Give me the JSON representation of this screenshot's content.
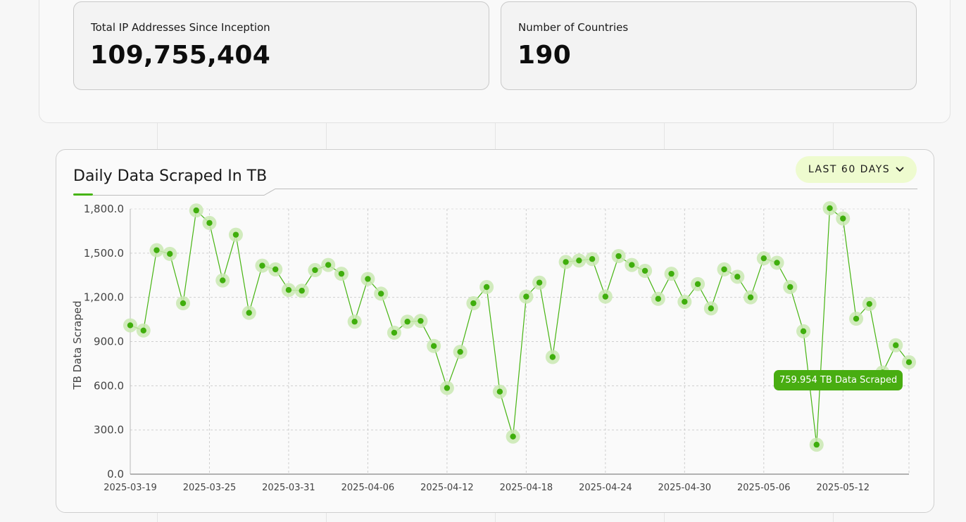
{
  "stats": [
    {
      "label": "Total IP Addresses Since Inception",
      "value": "109,755,404"
    },
    {
      "label": "Number of Countries",
      "value": "190"
    }
  ],
  "chart_panel": {
    "title": "Daily Data Scraped In TB",
    "range_label": "LAST 60 DAYS",
    "range_icon": "chevron-down-icon",
    "tooltip": "759.954 TB Data Scraped"
  },
  "colors": {
    "accent": "#46b411",
    "point": "#3fae0c",
    "halo": "#c9e8b2",
    "tooltip_bg": "#48ad11"
  },
  "chart_data": {
    "type": "line",
    "ylabel": "TB Data Scraped",
    "xlabel": "",
    "ylim": [
      0,
      1800
    ],
    "yticks": [
      "0.0",
      "300.0",
      "600.0",
      "900.0",
      "1,200.0",
      "1,500.0",
      "1,800.0"
    ],
    "xticks": [
      "2025-03-19",
      "2025-03-25",
      "2025-03-31",
      "2025-04-06",
      "2025-04-12",
      "2025-04-18",
      "2025-04-24",
      "2025-04-30",
      "2025-05-06",
      "2025-05-12"
    ],
    "x_start": "2025-03-19",
    "grid": true,
    "series": [
      {
        "values": [
          1010,
          975,
          1520,
          1495,
          1160,
          1790,
          1705,
          1315,
          1625,
          1095,
          1415,
          1390,
          1250,
          1245,
          1385,
          1420,
          1360,
          1035,
          1325,
          1225,
          960,
          1035,
          1040,
          870,
          585,
          830,
          1160,
          1270,
          560,
          255,
          1205,
          1300,
          795,
          1440,
          1450,
          1460,
          1205,
          1480,
          1420,
          1380,
          1190,
          1360,
          1170,
          1290,
          1125,
          1390,
          1340,
          1200,
          1465,
          1435,
          1270,
          970,
          200,
          1805,
          1735,
          1055,
          1155,
          690,
          875,
          760
        ]
      }
    ]
  }
}
